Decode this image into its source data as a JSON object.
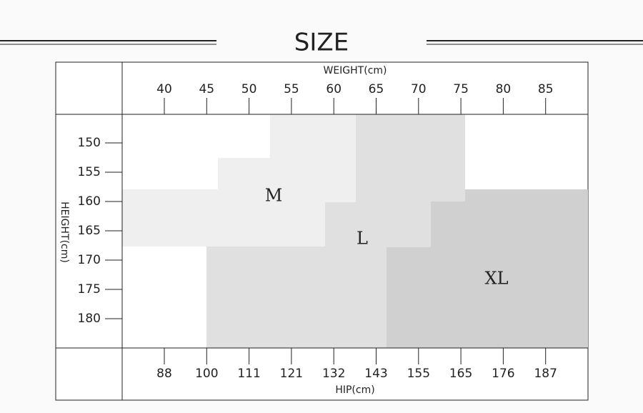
{
  "header": {
    "title": "SIZE"
  },
  "weight": {
    "label": "WEIGHT(cm)",
    "ticks": [
      "40",
      "45",
      "50",
      "55",
      "60",
      "65",
      "70",
      "75",
      "80",
      "85"
    ]
  },
  "height": {
    "label": "HEIGHT(cm)",
    "ticks": [
      "150",
      "155",
      "160",
      "165",
      "170",
      "175",
      "180"
    ]
  },
  "hip": {
    "label": "HIP(cm)",
    "ticks": [
      "88",
      "100",
      "111",
      "121",
      "132",
      "143",
      "155",
      "165",
      "176",
      "187"
    ]
  },
  "sizes": [
    "M",
    "L",
    "XL"
  ]
}
